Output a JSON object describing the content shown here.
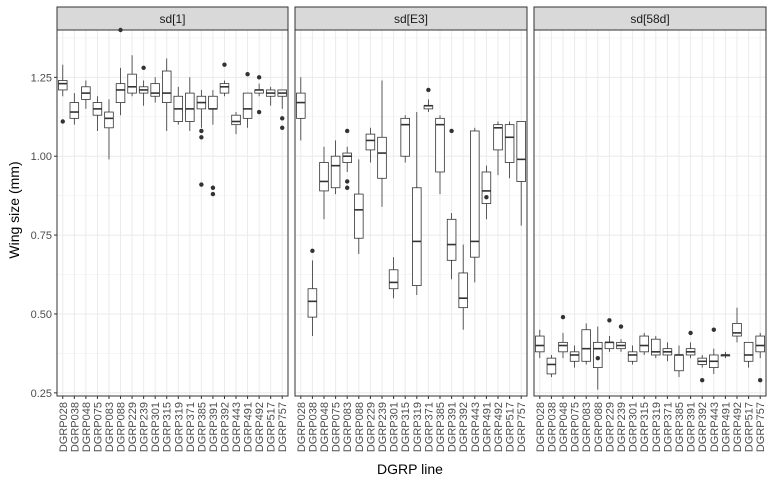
{
  "chart_data": {
    "type": "boxplot",
    "facet_layout": "1 row x 3 columns, shared y axis",
    "xlabel": "DGRP line",
    "ylabel": "Wing size (mm)",
    "ylim": [
      0.24,
      1.4
    ],
    "y_ticks": [
      0.25,
      0.5,
      0.75,
      1.0,
      1.25
    ],
    "y_tick_labels": [
      "0.25",
      "0.50",
      "0.75",
      "1.00",
      "1.25"
    ],
    "grid": true,
    "legend": "none",
    "categories": [
      "DGRP028",
      "DGRP038",
      "DGRP048",
      "DGRP075",
      "DGRP083",
      "DGRP088",
      "DGRP229",
      "DGRP239",
      "DGRP301",
      "DGRP315",
      "DGRP319",
      "DGRP371",
      "DGRP385",
      "DGRP391",
      "DGRP392",
      "DGRP443",
      "DGRP491",
      "DGRP492",
      "DGRP517",
      "DGRP757"
    ],
    "stat_keys": [
      "whisker_low",
      "q1",
      "median",
      "q3",
      "whisker_high"
    ],
    "facets": [
      {
        "label": "sd[1]",
        "boxes": [
          [
            1.19,
            1.21,
            1.23,
            1.24,
            1.29
          ],
          [
            1.1,
            1.12,
            1.14,
            1.17,
            1.2
          ],
          [
            1.15,
            1.18,
            1.2,
            1.22,
            1.24
          ],
          [
            1.08,
            1.13,
            1.15,
            1.17,
            1.19
          ],
          [
            0.99,
            1.09,
            1.12,
            1.14,
            1.18
          ],
          [
            1.13,
            1.17,
            1.21,
            1.23,
            1.28
          ],
          [
            1.19,
            1.2,
            1.22,
            1.26,
            1.32
          ],
          [
            1.16,
            1.2,
            1.21,
            1.22,
            1.24
          ],
          [
            1.17,
            1.19,
            1.2,
            1.23,
            1.25
          ],
          [
            1.08,
            1.17,
            1.2,
            1.27,
            1.31
          ],
          [
            1.1,
            1.11,
            1.15,
            1.19,
            1.22
          ],
          [
            1.08,
            1.11,
            1.15,
            1.2,
            1.25
          ],
          [
            1.09,
            1.15,
            1.17,
            1.19,
            1.21
          ],
          [
            1.1,
            1.15,
            1.15,
            1.19,
            1.21
          ],
          [
            1.19,
            1.2,
            1.22,
            1.23,
            1.24
          ],
          [
            1.07,
            1.1,
            1.11,
            1.13,
            1.14
          ],
          [
            1.09,
            1.12,
            1.15,
            1.2,
            1.2
          ],
          [
            1.19,
            1.2,
            1.21,
            1.21,
            1.23
          ],
          [
            1.16,
            1.19,
            1.2,
            1.21,
            1.22
          ],
          [
            1.15,
            1.19,
            1.2,
            1.21,
            1.21
          ]
        ],
        "outliers": [
          [
            0,
            1.11
          ],
          [
            5,
            1.4
          ],
          [
            7,
            1.28
          ],
          [
            12,
            0.91
          ],
          [
            12,
            1.06
          ],
          [
            12,
            1.08
          ],
          [
            13,
            0.88
          ],
          [
            13,
            0.9
          ],
          [
            14,
            1.29
          ],
          [
            16,
            1.26
          ],
          [
            17,
            1.14
          ],
          [
            17,
            1.25
          ],
          [
            19,
            1.09
          ],
          [
            19,
            1.12
          ]
        ]
      },
      {
        "label": "sd[E3]",
        "boxes": [
          [
            1.05,
            1.12,
            1.17,
            1.2,
            1.25
          ],
          [
            0.43,
            0.49,
            0.54,
            0.58,
            0.67
          ],
          [
            0.8,
            0.89,
            0.92,
            0.98,
            1.03
          ],
          [
            0.88,
            0.9,
            0.97,
            1.0,
            1.05
          ],
          [
            0.95,
            0.98,
            1.0,
            1.01,
            1.03
          ],
          [
            0.69,
            0.74,
            0.83,
            0.88,
            0.99
          ],
          [
            0.98,
            1.02,
            1.05,
            1.07,
            1.09
          ],
          [
            0.84,
            0.93,
            1.01,
            1.06,
            1.24
          ],
          [
            0.55,
            0.58,
            0.6,
            0.64,
            0.68
          ],
          [
            0.98,
            1.0,
            1.1,
            1.12,
            1.13
          ],
          [
            0.56,
            0.59,
            0.73,
            0.9,
            1.14
          ],
          [
            1.14,
            1.15,
            1.16,
            1.16,
            1.18
          ],
          [
            0.88,
            0.95,
            1.1,
            1.12,
            1.13
          ],
          [
            0.61,
            0.67,
            0.72,
            0.8,
            0.82
          ],
          [
            0.45,
            0.52,
            0.55,
            0.63,
            0.72
          ],
          [
            0.6,
            0.68,
            0.73,
            1.08,
            1.09
          ],
          [
            0.8,
            0.85,
            0.89,
            0.95,
            0.97
          ],
          [
            0.94,
            1.02,
            1.09,
            1.1,
            1.11
          ],
          [
            0.93,
            0.98,
            1.06,
            1.1,
            1.11
          ],
          [
            0.78,
            0.92,
            0.99,
            1.11,
            1.11
          ]
        ],
        "outliers": [
          [
            1,
            0.7
          ],
          [
            4,
            0.9
          ],
          [
            4,
            0.92
          ],
          [
            4,
            1.08
          ],
          [
            11,
            1.21
          ],
          [
            13,
            1.08
          ],
          [
            16,
            0.87
          ]
        ]
      },
      {
        "label": "sd[58d]",
        "boxes": [
          [
            0.36,
            0.38,
            0.4,
            0.43,
            0.45
          ],
          [
            0.3,
            0.31,
            0.34,
            0.36,
            0.37
          ],
          [
            0.36,
            0.38,
            0.4,
            0.41,
            0.44
          ],
          [
            0.33,
            0.35,
            0.37,
            0.38,
            0.4
          ],
          [
            0.34,
            0.35,
            0.39,
            0.45,
            0.47
          ],
          [
            0.26,
            0.33,
            0.39,
            0.41,
            0.46
          ],
          [
            0.38,
            0.39,
            0.41,
            0.41,
            0.43
          ],
          [
            0.38,
            0.39,
            0.4,
            0.41,
            0.42
          ],
          [
            0.34,
            0.35,
            0.37,
            0.38,
            0.4
          ],
          [
            0.37,
            0.38,
            0.4,
            0.43,
            0.44
          ],
          [
            0.36,
            0.37,
            0.38,
            0.42,
            0.43
          ],
          [
            0.35,
            0.37,
            0.38,
            0.39,
            0.41
          ],
          [
            0.3,
            0.32,
            0.37,
            0.37,
            0.4
          ],
          [
            0.36,
            0.37,
            0.38,
            0.39,
            0.41
          ],
          [
            0.33,
            0.34,
            0.35,
            0.36,
            0.37
          ],
          [
            0.31,
            0.33,
            0.35,
            0.37,
            0.39
          ],
          [
            0.36,
            0.37,
            0.37,
            0.37,
            0.38
          ],
          [
            0.41,
            0.43,
            0.44,
            0.47,
            0.52
          ],
          [
            0.33,
            0.35,
            0.37,
            0.41,
            0.41
          ],
          [
            0.36,
            0.38,
            0.4,
            0.43,
            0.44
          ]
        ],
        "outliers": [
          [
            2,
            0.49
          ],
          [
            5,
            0.36
          ],
          [
            6,
            0.48
          ],
          [
            7,
            0.46
          ],
          [
            13,
            0.44
          ],
          [
            14,
            0.29
          ],
          [
            15,
            0.45
          ],
          [
            19,
            0.29
          ]
        ]
      }
    ]
  }
}
